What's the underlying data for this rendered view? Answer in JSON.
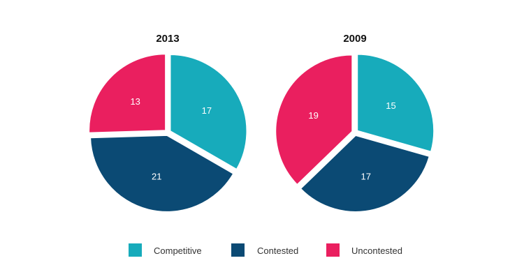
{
  "chart_data": {
    "type": "pie",
    "charts": [
      {
        "title": "2013",
        "slices": [
          {
            "label": "Competitive",
            "value": 17
          },
          {
            "label": "Contested",
            "value": 21
          },
          {
            "label": "Uncontested",
            "value": 13
          }
        ]
      },
      {
        "title": "2009",
        "slices": [
          {
            "label": "Competitive",
            "value": 15
          },
          {
            "label": "Contested",
            "value": 17
          },
          {
            "label": "Uncontested",
            "value": 19
          }
        ]
      }
    ],
    "legend": {
      "position": "bottom",
      "entries": [
        {
          "label": "Competitive",
          "color": "#17abbb"
        },
        {
          "label": "Contested",
          "color": "#0b4a74"
        },
        {
          "label": "Uncontested",
          "color": "#ea1f5f"
        }
      ]
    }
  }
}
